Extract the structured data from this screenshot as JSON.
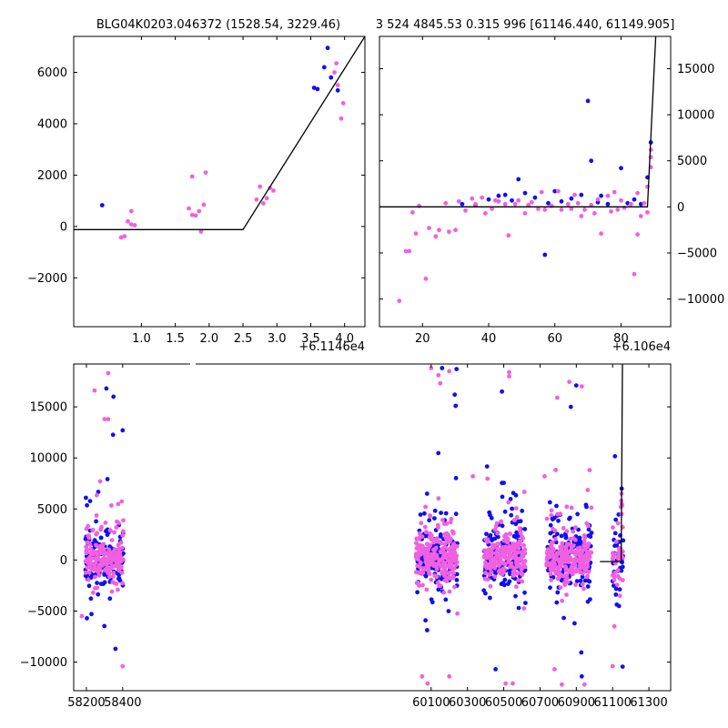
{
  "colors": {
    "blue": "#1010f0",
    "pink": "#f060e0",
    "line": "#000000"
  },
  "chart_data": [
    {
      "id": "tl",
      "type": "scatter",
      "title": "BLG04K0203.046372 (1528.54, 3229.46)",
      "offset_label": "+6.1146e4",
      "xlim": [
        0,
        4.3
      ],
      "ylim": [
        -3900,
        7400
      ],
      "xticks": [
        1.0,
        1.5,
        2.0,
        2.5,
        3.0,
        3.5,
        4.0
      ],
      "xtick_labels": [
        "1.0",
        "1.5",
        "2.0",
        "2.5",
        "3.0",
        "3.5",
        "4.0"
      ],
      "yticks": [
        -2000,
        0,
        2000,
        4000,
        6000
      ],
      "ytick_labels": [
        "−2000",
        "0",
        "2000",
        "4000",
        "6000"
      ],
      "series": [
        {
          "name": "blue",
          "points": [
            [
              0.42,
              830
            ],
            [
              3.55,
              5400
            ],
            [
              3.6,
              5350
            ],
            [
              3.7,
              6200
            ],
            [
              3.75,
              6950
            ],
            [
              3.8,
              5800
            ],
            [
              3.9,
              5300
            ]
          ]
        },
        {
          "name": "pink",
          "points": [
            [
              0.7,
              -430
            ],
            [
              0.75,
              -380
            ],
            [
              0.8,
              200
            ],
            [
              0.85,
              600
            ],
            [
              0.9,
              50
            ],
            [
              0.85,
              80
            ],
            [
              1.7,
              700
            ],
            [
              1.75,
              450
            ],
            [
              1.8,
              430
            ],
            [
              1.85,
              600
            ],
            [
              1.75,
              1950
            ],
            [
              1.88,
              -200
            ],
            [
              1.95,
              2100
            ],
            [
              1.92,
              850
            ],
            [
              2.7,
              1050
            ],
            [
              2.75,
              1550
            ],
            [
              2.8,
              900
            ],
            [
              2.85,
              1100
            ],
            [
              2.9,
              1500
            ],
            [
              2.95,
              1400
            ],
            [
              3.85,
              6000
            ],
            [
              3.9,
              5500
            ],
            [
              3.95,
              4200
            ],
            [
              3.98,
              4800
            ],
            [
              3.88,
              6350
            ]
          ]
        }
      ],
      "model": [
        [
          0,
          -120
        ],
        [
          2.5,
          -120
        ],
        [
          4.3,
          7400
        ]
      ]
    },
    {
      "id": "tr",
      "type": "scatter",
      "title": "3 524 4845.53 0.315 996 [61146.440, 61149.905]",
      "offset_label": "+6.106e4",
      "xlim": [
        7,
        95
      ],
      "ylim": [
        -13000,
        18500
      ],
      "xticks": [
        20,
        40,
        60,
        80
      ],
      "xtick_labels": [
        "20",
        "40",
        "60",
        "80"
      ],
      "yticks": [
        -10000,
        -5000,
        0,
        5000,
        10000,
        15000
      ],
      "ytick_labels": [
        "−10000",
        "−5000",
        "0",
        "5000",
        "10000",
        "15000"
      ],
      "series": [
        {
          "name": "blue",
          "points": [
            [
              32,
              300
            ],
            [
              36,
              200
            ],
            [
              40,
              800
            ],
            [
              43,
              1200
            ],
            [
              45,
              1300
            ],
            [
              47,
              700
            ],
            [
              49,
              3000
            ],
            [
              51,
              1500
            ],
            [
              54,
              1000
            ],
            [
              57,
              -5200
            ],
            [
              58,
              400
            ],
            [
              60,
              1700
            ],
            [
              62,
              600
            ],
            [
              65,
              900
            ],
            [
              68,
              1300
            ],
            [
              70,
              11500
            ],
            [
              71,
              5000
            ],
            [
              73,
              500
            ],
            [
              74,
              1200
            ],
            [
              76,
              300
            ],
            [
              80,
              4200
            ],
            [
              82,
              400
            ],
            [
              84,
              800
            ],
            [
              86,
              300
            ],
            [
              88,
              3200
            ],
            [
              89,
              7000
            ]
          ]
        },
        {
          "name": "pink",
          "points": [
            [
              13,
              -10200
            ],
            [
              15,
              -4800
            ],
            [
              16,
              -4800
            ],
            [
              17,
              -600
            ],
            [
              18,
              -2900
            ],
            [
              19,
              100
            ],
            [
              21,
              -7800
            ],
            [
              22,
              -2300
            ],
            [
              24,
              -3200
            ],
            [
              25,
              -2500
            ],
            [
              27,
              400
            ],
            [
              28,
              -2700
            ],
            [
              30,
              -2500
            ],
            [
              31,
              600
            ],
            [
              33,
              -400
            ],
            [
              35,
              900
            ],
            [
              36,
              300
            ],
            [
              38,
              1000
            ],
            [
              39,
              -700
            ],
            [
              41,
              -200
            ],
            [
              42,
              700
            ],
            [
              43,
              600
            ],
            [
              45,
              300
            ],
            [
              46,
              -3100
            ],
            [
              48,
              300
            ],
            [
              49,
              700
            ],
            [
              51,
              -700
            ],
            [
              52,
              200
            ],
            [
              53,
              500
            ],
            [
              55,
              -200
            ],
            [
              56,
              1600
            ],
            [
              57,
              -300
            ],
            [
              59,
              100
            ],
            [
              61,
              1700
            ],
            [
              62,
              -300
            ],
            [
              64,
              300
            ],
            [
              65,
              -200
            ],
            [
              66,
              1300
            ],
            [
              67,
              400
            ],
            [
              68,
              -1000
            ],
            [
              69,
              -300
            ],
            [
              71,
              200
            ],
            [
              72,
              -700
            ],
            [
              73,
              800
            ],
            [
              74,
              -2900
            ],
            [
              76,
              1200
            ],
            [
              77,
              -500
            ],
            [
              78,
              1600
            ],
            [
              79,
              -300
            ],
            [
              80,
              700
            ],
            [
              81,
              -100
            ],
            [
              83,
              300
            ],
            [
              84,
              -7300
            ],
            [
              85,
              -3000
            ],
            [
              85,
              1500
            ],
            [
              86,
              -1000
            ],
            [
              87,
              400
            ],
            [
              88,
              -600
            ],
            [
              88,
              2200
            ],
            [
              89,
              6200
            ],
            [
              89,
              5400
            ],
            [
              89,
              4300
            ]
          ]
        }
      ],
      "model": [
        [
          7,
          0
        ],
        [
          88,
          0
        ],
        [
          90.5,
          18500
        ]
      ]
    },
    {
      "id": "bt",
      "type": "scatter",
      "title": "",
      "xlim": [
        58130,
        61420
      ],
      "ylim": [
        -12800,
        19200
      ],
      "xticks": [
        58200,
        58400,
        60100,
        60300,
        60500,
        60700,
        60900,
        61100,
        61300
      ],
      "xtick_labels": [
        "58200",
        "58400",
        "60100",
        "60300",
        "60500",
        "60700",
        "60900",
        "61100",
        "61300"
      ],
      "yticks": [
        -10000,
        -5000,
        0,
        5000,
        10000,
        15000
      ],
      "ytick_labels": [
        "−10000",
        "−5000",
        "0",
        "5000",
        "10000",
        "15000"
      ],
      "clusters": [
        {
          "center": 58300,
          "half_width": 105,
          "count": 320,
          "seed": 11
        },
        {
          "center": 60130,
          "half_width": 115,
          "count": 380,
          "seed": 23
        },
        {
          "center": 60505,
          "half_width": 115,
          "count": 360,
          "seed": 37
        },
        {
          "center": 60860,
          "half_width": 125,
          "count": 400,
          "seed": 51
        },
        {
          "center": 61130,
          "half_width": 30,
          "count": 70,
          "seed": 67
        }
      ],
      "outliers": [
        {
          "name": "pink",
          "points": [
            [
              58245,
              16600
            ],
            [
              58320,
              18300
            ],
            [
              58300,
              13800
            ],
            [
              58320,
              13800
            ],
            [
              58400,
              -10400
            ],
            [
              58175,
              -5500
            ],
            [
              60100,
              18800
            ],
            [
              60140,
              18100
            ],
            [
              60150,
              17300
            ],
            [
              60050,
              -11400
            ],
            [
              60080,
              -12100
            ],
            [
              60200,
              -11400
            ],
            [
              60200,
              18500
            ],
            [
              60530,
              18400
            ],
            [
              60530,
              18000
            ],
            [
              60510,
              -12100
            ],
            [
              60550,
              -12100
            ],
            [
              60330,
              8200
            ],
            [
              60795,
              15900
            ],
            [
              60820,
              -12200
            ],
            [
              60780,
              -10700
            ],
            [
              60930,
              17000
            ],
            [
              60725,
              8200
            ],
            [
              61100,
              -10400
            ],
            [
              61110,
              -6500
            ],
            [
              61140,
              -3500
            ],
            [
              61130,
              3600
            ],
            [
              61150,
              4500
            ],
            [
              61145,
              5200
            ],
            [
              61148,
              5800
            ],
            [
              61149,
              6500
            ]
          ]
        },
        {
          "name": "blue",
          "points": [
            [
              58310,
              16800
            ],
            [
              58400,
              12700
            ],
            [
              58360,
              -8700
            ],
            [
              60160,
              18800
            ],
            [
              60240,
              18700
            ],
            [
              60230,
              16200
            ],
            [
              60235,
              15100
            ],
            [
              60490,
              16500
            ],
            [
              60455,
              -10700
            ],
            [
              60900,
              17100
            ],
            [
              60870,
              15000
            ],
            [
              60930,
              -11400
            ],
            [
              61150,
              7000
            ],
            [
              61135,
              -4500
            ]
          ]
        }
      ],
      "model": [
        [
          61030,
          -150
        ],
        [
          61147,
          -150
        ],
        [
          61154,
          19200
        ]
      ]
    }
  ]
}
